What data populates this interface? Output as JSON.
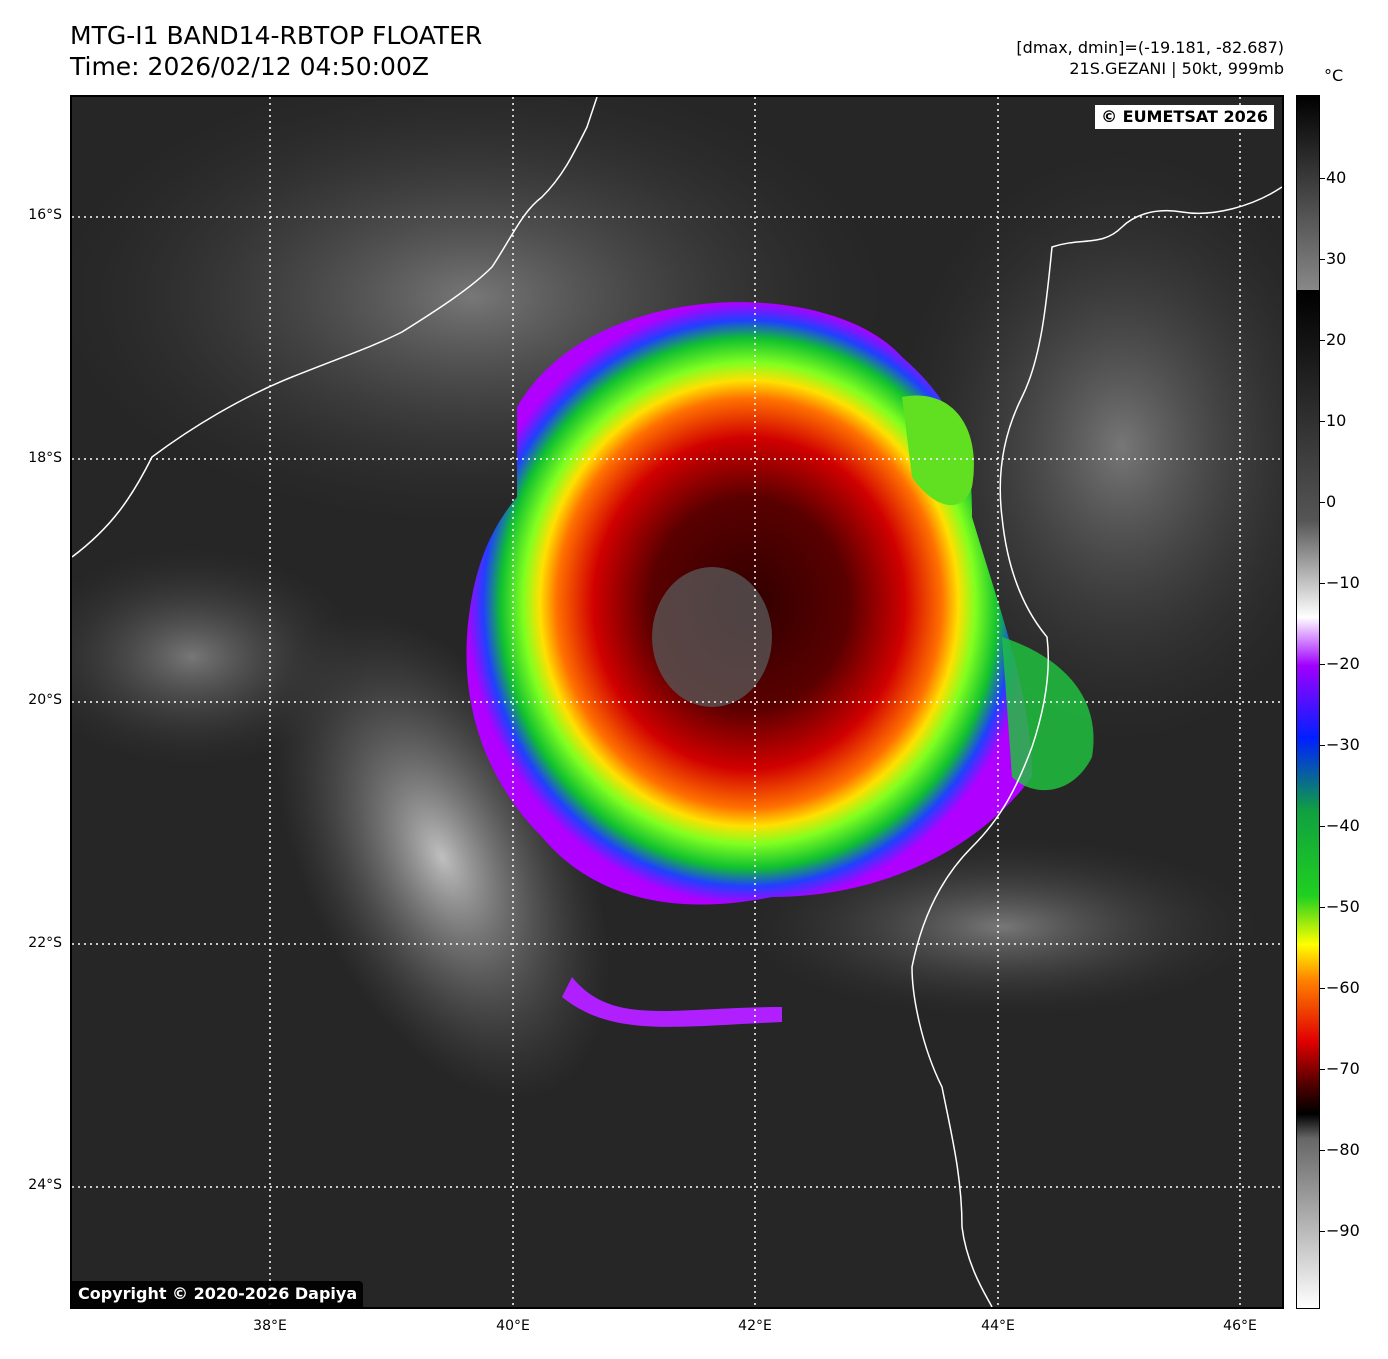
{
  "header": {
    "title_line1": "MTG-I1 BAND14-RBTOP FLOATER",
    "title_line2": "Time: 2026/02/12 04:50:00Z",
    "range_text": "[dmax, dmin]=(-19.181, -82.687)",
    "storm_text": "21S.GEZANI | 50kt, 999mb"
  },
  "map": {
    "credit_top": "© EUMETSAT 2026",
    "credit_bottom": "Copyright © 2020-2026 Dapiya",
    "lat_labels": [
      "16°S",
      "18°S",
      "20°S",
      "22°S",
      "24°S"
    ],
    "lon_labels": [
      "38°E",
      "40°E",
      "42°E",
      "44°E",
      "46°E"
    ]
  },
  "colorbar": {
    "unit": "°C",
    "tick_labels": [
      "40",
      "30",
      "20",
      "10",
      "0",
      "−10",
      "−20",
      "−30",
      "−40",
      "−50",
      "−60",
      "−70",
      "−80",
      "−90"
    ],
    "colors": {
      "warm_gray_top": "#000000",
      "purple": "#a000ff",
      "blue": "#0020ff",
      "green": "#20d020",
      "yellow": "#ffff00",
      "orange": "#ff8000",
      "red": "#e00000",
      "dark_red": "#400000"
    }
  }
}
